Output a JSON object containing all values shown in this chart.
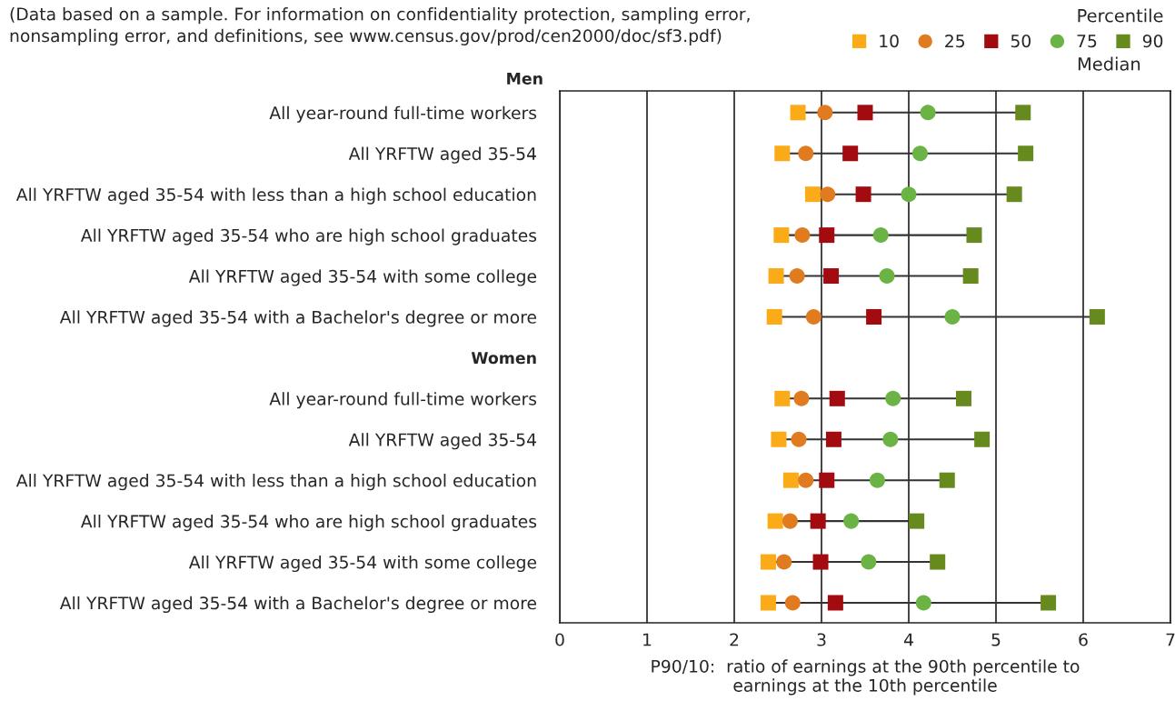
{
  "chart_data": {
    "type": "scatter",
    "annotations": [
      "(Data based on a sample. For information on confidentiality protection, sampling error,\nnonsampling error, and definitions, see www.census.gov/prod/cen2000/doc/sf3.pdf)",
      "Median"
    ],
    "xlabel": "P90/10:  ratio of earnings at the 90th percentile to\nearnings at the 10th percentile",
    "legend_title": "Percentile",
    "categories": [
      "Men",
      "All year-round full-time workers",
      "All YRFTW aged 35-54",
      "All YRFTW aged 35-54 with less than a high school education",
      "All YRFTW aged 35-54 who are high school graduates",
      "All YRFTW aged 35-54 with some college",
      "All YRFTW aged 35-54 with a Bachelor's degree or more",
      "Women",
      "All year-round full-time workers",
      "All YRFTW aged 35-54",
      "All YRFTW aged 35-54 with less than a high school education",
      "All YRFTW aged 35-54 who are high school graduates",
      "All YRFTW aged 35-54 with some college",
      "All YRFTW aged 35-54 with a Bachelor's degree or more"
    ],
    "series": [
      {
        "name": "10",
        "color": "#fbab18",
        "marker": "square",
        "values": [
          null,
          2.73,
          2.55,
          2.9,
          2.54,
          2.48,
          2.46,
          null,
          2.55,
          2.51,
          2.65,
          2.47,
          2.39,
          2.39
        ]
      },
      {
        "name": "25",
        "color": "#e07b1f",
        "marker": "circle",
        "values": [
          null,
          3.04,
          2.82,
          3.07,
          2.78,
          2.72,
          2.91,
          null,
          2.77,
          2.74,
          2.82,
          2.64,
          2.57,
          2.67
        ]
      },
      {
        "name": "50",
        "color": "#a20c10",
        "marker": "square",
        "values": [
          null,
          3.5,
          3.33,
          3.48,
          3.06,
          3.11,
          3.6,
          null,
          3.18,
          3.14,
          3.06,
          2.96,
          2.99,
          3.16
        ]
      },
      {
        "name": "75",
        "color": "#6ab344",
        "marker": "circle",
        "values": [
          null,
          4.22,
          4.13,
          4.0,
          3.68,
          3.75,
          4.5,
          null,
          3.82,
          3.79,
          3.64,
          3.34,
          3.54,
          4.17
        ]
      },
      {
        "name": "90",
        "color": "#678a1e",
        "marker": "square",
        "values": [
          null,
          5.31,
          5.34,
          5.21,
          4.75,
          4.71,
          6.16,
          null,
          4.63,
          4.84,
          4.44,
          4.09,
          4.33,
          5.6
        ]
      }
    ],
    "orientation": "horizontal",
    "xlim": [
      0,
      7
    ],
    "xticks": [
      0,
      1,
      2,
      3,
      4,
      5,
      6,
      7
    ],
    "grid": "x",
    "legend": "top right"
  }
}
